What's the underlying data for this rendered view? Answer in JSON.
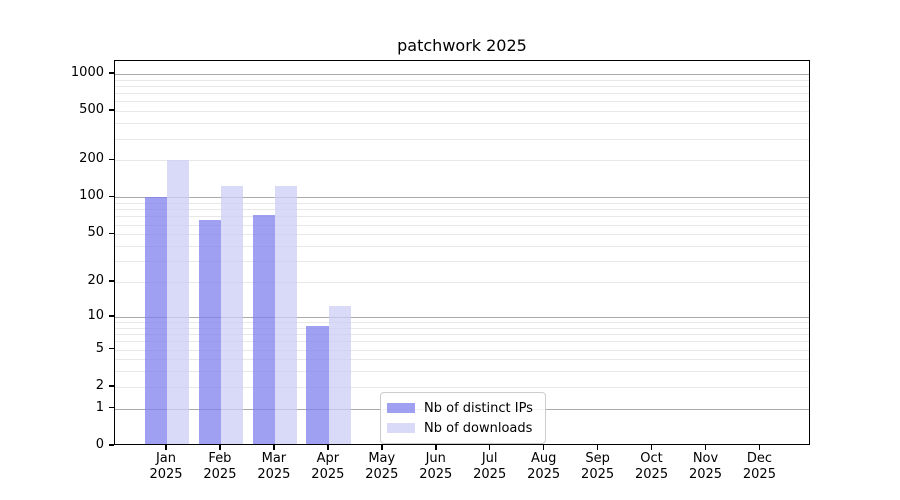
{
  "chart_data": {
    "type": "bar",
    "title": "patchwork 2025",
    "scale": "log1p",
    "categories": [
      "Jan",
      "Feb",
      "Mar",
      "Apr",
      "May",
      "Jun",
      "Jul",
      "Aug",
      "Sep",
      "Oct",
      "Nov",
      "Dec"
    ],
    "year_label": "2025",
    "series": [
      {
        "name": "Nb of distinct IPs",
        "color": "#8080ee",
        "alpha": 0.75,
        "values": [
          97,
          63,
          69,
          8,
          0,
          0,
          0,
          0,
          0,
          0,
          0,
          0
        ]
      },
      {
        "name": "Nb of downloads",
        "color": "#ccccf6",
        "alpha": 0.75,
        "values": [
          193,
          120,
          120,
          12,
          0,
          0,
          0,
          0,
          0,
          0,
          0,
          0
        ]
      }
    ],
    "xlabel": "",
    "ylabel": "",
    "ylim": [
      0,
      1272
    ],
    "yticks": [
      0,
      1,
      2,
      5,
      10,
      20,
      50,
      100,
      200,
      500,
      1000
    ],
    "grid": {
      "on": true,
      "major_at": [
        1,
        10,
        100,
        1000
      ],
      "minor_subs": [
        2,
        3,
        4,
        5,
        6,
        7,
        8,
        9
      ],
      "major_color": "#aaaaaa",
      "minor_color": "#e8e8e8"
    },
    "legend": {
      "position": "lower center-right",
      "frame_color": "#cccccc"
    },
    "colors": {
      "background": "#ffffff",
      "spine": "#000000",
      "text": "#000000"
    }
  }
}
